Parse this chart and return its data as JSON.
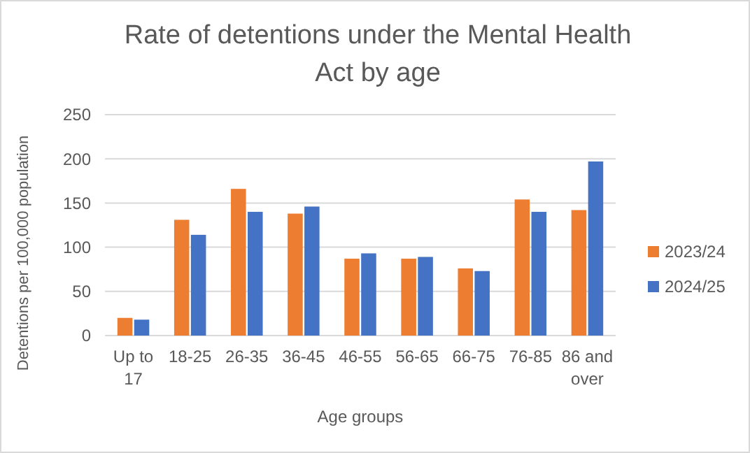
{
  "chart_data": {
    "type": "bar",
    "title": "Rate of detentions under the Mental Health Act by age",
    "xlabel": "Age groups",
    "ylabel": "Detentions per 100,000 population",
    "categories": [
      "Up to 17",
      "18-25",
      "26-35",
      "36-45",
      "46-55",
      "56-65",
      "66-75",
      "76-85",
      "86 and over"
    ],
    "series": [
      {
        "name": "2023/24",
        "color": "#ed7d31",
        "values": [
          20,
          131,
          166,
          138,
          87,
          87,
          76,
          154,
          142
        ]
      },
      {
        "name": "2024/25",
        "color": "#4472c4",
        "values": [
          18,
          114,
          140,
          146,
          93,
          89,
          73,
          140,
          197
        ]
      }
    ],
    "ylim": [
      0,
      250
    ],
    "yticks": [
      0,
      50,
      100,
      150,
      200,
      250
    ],
    "grid": "y",
    "legend": "right"
  }
}
